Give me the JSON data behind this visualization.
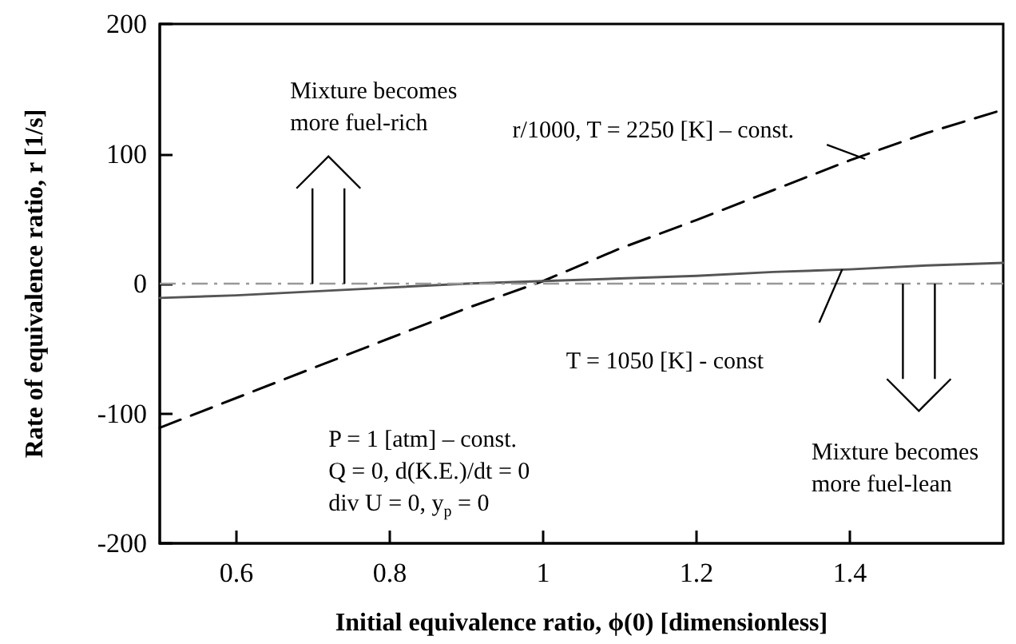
{
  "chart_data": {
    "type": "line",
    "xlabel": "Initial equivalence ratio, ϕ(0) [dimensionless]",
    "ylabel": "Rate of equivalence ratio, r [1/s]",
    "x": [
      0.5,
      0.6,
      0.8,
      0.9,
      1.0,
      1.1,
      1.2,
      1.3,
      1.4,
      1.5,
      1.6
    ],
    "series": [
      {
        "name": "r/1000, T = 2250 [K] – const.",
        "color": "#000000",
        "line_style": "dashed",
        "values": [
          -111,
          -88,
          -42,
          -19,
          2,
          27,
          49,
          72,
          95,
          116,
          134
        ]
      },
      {
        "name": "T = 1050 [K] - const",
        "color": "#555555",
        "line_style": "solid",
        "values": [
          -11,
          -9,
          -3,
          0,
          2,
          4,
          6,
          9,
          11,
          14,
          16
        ]
      }
    ],
    "xlim": [
      0.5,
      1.6
    ],
    "xticks": [
      0.6,
      0.8,
      1,
      1.2,
      1.4
    ],
    "ylim": [
      -200,
      200
    ],
    "yticks": [
      -200,
      -100,
      0,
      100,
      200
    ],
    "ref_lines": [
      {
        "axis": "y",
        "value": 0,
        "color": "#999999",
        "line_style": "dashed"
      }
    ],
    "annotations": [
      "Mixture becomes\nmore fuel-rich",
      "Mixture becomes\nmore fuel-lean",
      "P = 1 [atm] – const.\nQ = 0, d(K.E.)/dt = 0\ndiv U = 0, y$_{p}$ = 0"
    ],
    "grid": false,
    "legend": false,
    "marker": "none"
  }
}
